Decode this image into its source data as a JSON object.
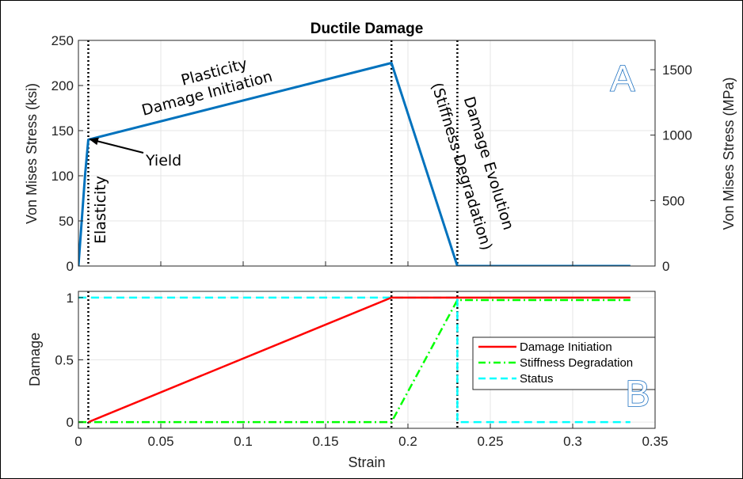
{
  "chart_data": [
    {
      "panel": "A",
      "type": "line",
      "title": "Ductile Damage",
      "ylabel": "Von Mises Stress (ksi)",
      "ylabel_right": "Von Mises Stress (MPa)",
      "xlim": [
        0,
        0.35
      ],
      "ylim": [
        0,
        250
      ],
      "ylim_right_mpa": [
        0,
        1724
      ],
      "yticks": [
        "0",
        "50",
        "100",
        "150",
        "200",
        "250"
      ],
      "yticks_right": [
        "0",
        "500",
        "1000",
        "1500"
      ],
      "grid": true,
      "series": [
        {
          "color": "#0072BD",
          "x": [
            0,
            0.004,
            0.006,
            0.19,
            0.23,
            0.335
          ],
          "y": [
            0,
            100,
            140,
            225,
            0,
            0
          ]
        }
      ],
      "vlines_x": [
        0.006,
        0.19,
        0.23
      ],
      "annotations": [
        {
          "text": "Elasticity"
        },
        {
          "text": "Yield"
        },
        {
          "text": "Plasticity"
        },
        {
          "text": "Damage Initiation"
        },
        {
          "text": "Damage Evolution"
        },
        {
          "text": "(Stiffness Degradation)"
        }
      ],
      "panel_label": "A"
    },
    {
      "panel": "B",
      "type": "line",
      "xlabel": "Strain",
      "ylabel": "Damage",
      "xlim": [
        0,
        0.35
      ],
      "ylim": [
        -0.05,
        1.05
      ],
      "xticks": [
        "0",
        "0.05",
        "0.1",
        "0.15",
        "0.2",
        "0.25",
        "0.3",
        "0.35"
      ],
      "yticks": [
        "0",
        "0.5",
        "1"
      ],
      "grid": true,
      "legend_position": "right",
      "series": [
        {
          "name": "Damage Initiation",
          "color": "#ff0000",
          "style": "solid",
          "x": [
            0.006,
            0.19,
            0.335
          ],
          "y": [
            0,
            1,
            1
          ]
        },
        {
          "name": "Stiffness Degradation",
          "color": "#00ff00",
          "style": "dashdot",
          "x": [
            0,
            0.19,
            0.23,
            0.335
          ],
          "y": [
            0,
            0,
            0.98,
            0.98
          ]
        },
        {
          "name": "Status",
          "color": "#00ffff",
          "style": "dashed",
          "x": [
            0,
            0.23,
            0.23,
            0.335
          ],
          "y": [
            1,
            1,
            0,
            0
          ]
        }
      ],
      "vlines_x": [
        0.006,
        0.19,
        0.23
      ],
      "panel_label": "B"
    }
  ],
  "colors": {
    "vline": "#000000",
    "grid": "#e6e6e6"
  }
}
